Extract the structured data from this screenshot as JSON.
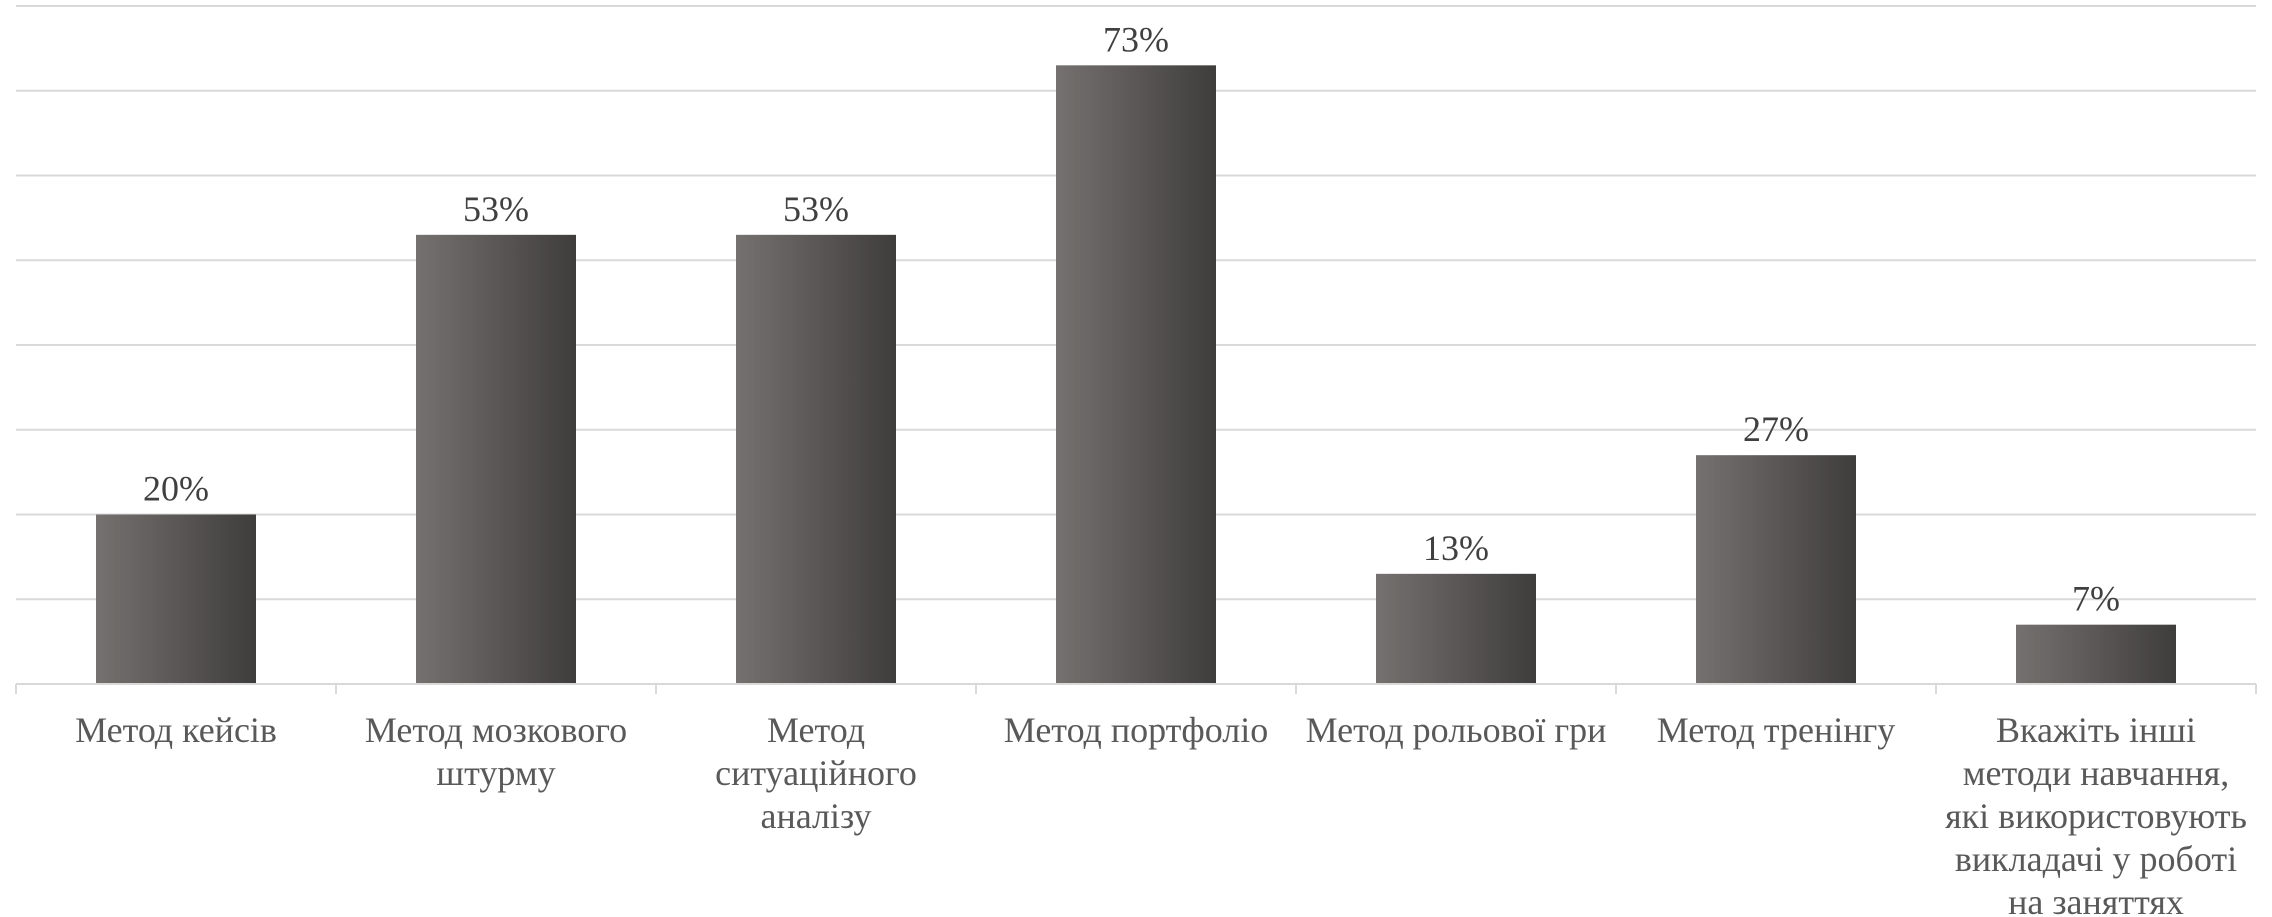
{
  "chart_data": {
    "type": "bar",
    "title": "",
    "xlabel": "",
    "ylabel": "",
    "ylim": [
      0,
      80
    ],
    "grid": true,
    "legend": "none",
    "value_suffix": "%",
    "categories": [
      "Метод кейсів",
      "Метод мозкового штурму",
      "Метод ситуаційного аналізу",
      "Метод портфоліо",
      "Метод рольової гри",
      "Метод тренінгу",
      "Вкажіть інші методи навчання, які використовують викладачі у роботі на заняттях"
    ],
    "category_lines": [
      [
        "Метод кейсів"
      ],
      [
        "Метод мозкового",
        "штурму"
      ],
      [
        "Метод",
        "ситуаційного",
        "аналізу"
      ],
      [
        "Метод портфоліо"
      ],
      [
        "Метод рольової гри"
      ],
      [
        "Метод тренінгу"
      ],
      [
        "Вкажіть інші",
        "методи навчання,",
        "які використовують",
        "викладачі у роботі",
        "на заняттях"
      ]
    ],
    "values": [
      20,
      53,
      53,
      73,
      13,
      27,
      7
    ],
    "colors": {
      "bar_light": "#757170",
      "bar_dark": "#3f3d3c",
      "grid": "#d9d9d9",
      "label": "#404040",
      "category_text": "#595959"
    }
  }
}
